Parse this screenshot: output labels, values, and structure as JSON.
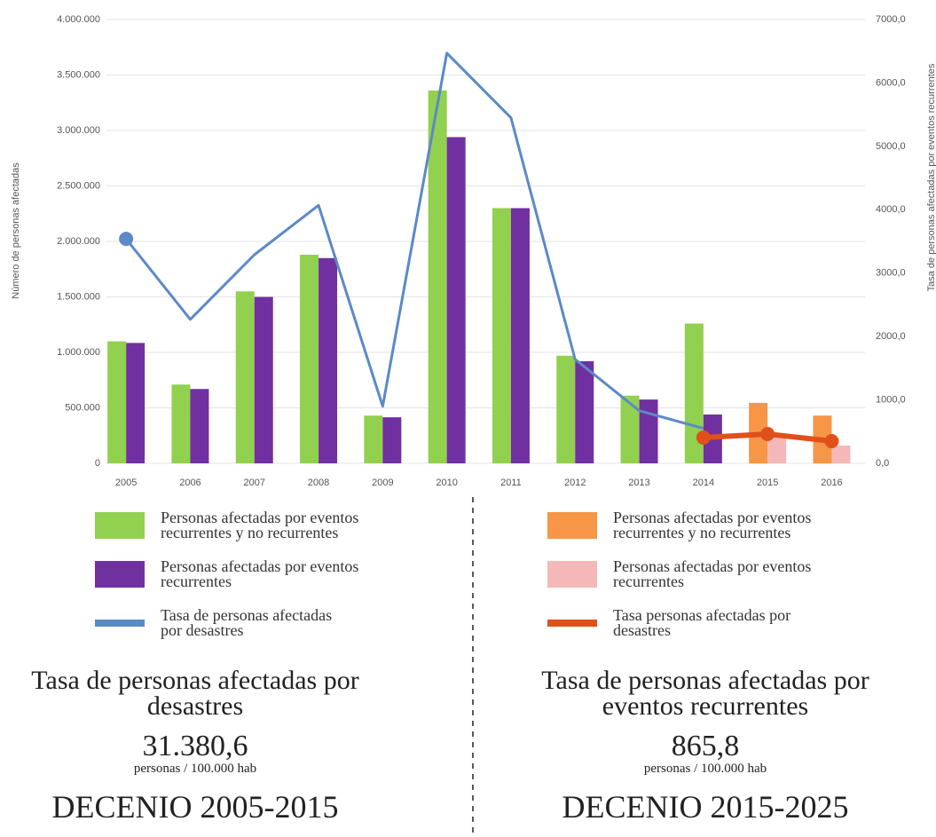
{
  "chart_data": {
    "type": "bar",
    "categories": [
      "2005",
      "2006",
      "2007",
      "2008",
      "2009",
      "2010",
      "2011",
      "2012",
      "2013",
      "2014",
      "2015",
      "2016"
    ],
    "ylabel": "Número de personas afectadas",
    "y2label": "Tasa de personas afectadas por eventos recurrentes",
    "ylim": [
      0,
      4000000
    ],
    "yticks": [
      0,
      {
        "value": 500000,
        "label": "500.000"
      },
      {
        "value": 1000000,
        "label": "1.000.000"
      },
      {
        "value": 1500000,
        "label": "1.500.000"
      },
      {
        "value": 2000000,
        "label": "2.000.000"
      },
      {
        "value": 2500000,
        "label": "2.500.000"
      },
      {
        "value": 3000000,
        "label": "3.000.000"
      },
      {
        "value": 3500000,
        "label": "3.500.000"
      },
      {
        "value": 4000000,
        "label": "4.000.000"
      }
    ],
    "y2lim": [
      0,
      7000
    ],
    "y2ticks": [
      {
        "value": 0,
        "label": "0,0"
      },
      {
        "value": 1000,
        "label": "1000,0"
      },
      {
        "value": 2000,
        "label": "2000,0"
      },
      {
        "value": 3000,
        "label": "3000,0"
      },
      {
        "value": 4000,
        "label": "4000,0"
      },
      {
        "value": 5000,
        "label": "5000,0"
      },
      {
        "value": 6000,
        "label": "6000,0"
      },
      {
        "value": 7000,
        "label": "7000,0"
      }
    ],
    "grid": true,
    "series": [
      {
        "name": "Personas afectadas por eventos recurrentes y no recurrentes",
        "type": "bar",
        "slot": "left",
        "color": "#92d050",
        "values": [
          1100000,
          710000,
          1550000,
          1880000,
          430000,
          3360000,
          2300000,
          970000,
          610000,
          1260000,
          null,
          null
        ]
      },
      {
        "name": "Personas afectadas por eventos recurrentes",
        "type": "bar",
        "slot": "right",
        "color": "#7030a0",
        "values": [
          1085000,
          670000,
          1500000,
          1850000,
          415000,
          2940000,
          2300000,
          920000,
          575000,
          440000,
          null,
          null
        ]
      },
      {
        "name": "Tasa de personas afectadas por desastres",
        "type": "line",
        "axis": "y2",
        "color": "#5b8ac6",
        "values": [
          3540,
          2270,
          3290,
          4070,
          900,
          6470,
          5450,
          1640,
          830,
          550,
          null,
          null
        ]
      },
      {
        "name": "Personas afectadas por eventos recurrentes y no recurrentes",
        "type": "bar",
        "slot": "left",
        "color": "#f79646",
        "values": [
          null,
          null,
          null,
          null,
          null,
          null,
          null,
          null,
          null,
          null,
          545000,
          430000
        ]
      },
      {
        "name": "Personas afectadas por eventos recurrentes",
        "type": "bar",
        "slot": "right",
        "color": "#f4b8b8",
        "values": [
          null,
          null,
          null,
          null,
          null,
          null,
          null,
          null,
          null,
          null,
          240000,
          160000
        ]
      },
      {
        "name": "Tasa personas afectadas por desastres",
        "type": "line",
        "axis": "y2",
        "color": "#e0501a",
        "markers": true,
        "values": [
          null,
          null,
          null,
          null,
          null,
          null,
          null,
          null,
          null,
          406,
          462,
          350
        ]
      }
    ]
  },
  "panels": [
    {
      "title": "Tasa de personas afectadas por desastres",
      "value": "31.380,6",
      "unit": "personas / 100.000 hab",
      "decade": "DECENIO 2005-2015"
    },
    {
      "title": "Tasa de personas afectadas por eventos recurrentes",
      "value": "865,8",
      "unit": "personas / 100.000 hab",
      "decade": "DECENIO 2015-2025"
    }
  ]
}
